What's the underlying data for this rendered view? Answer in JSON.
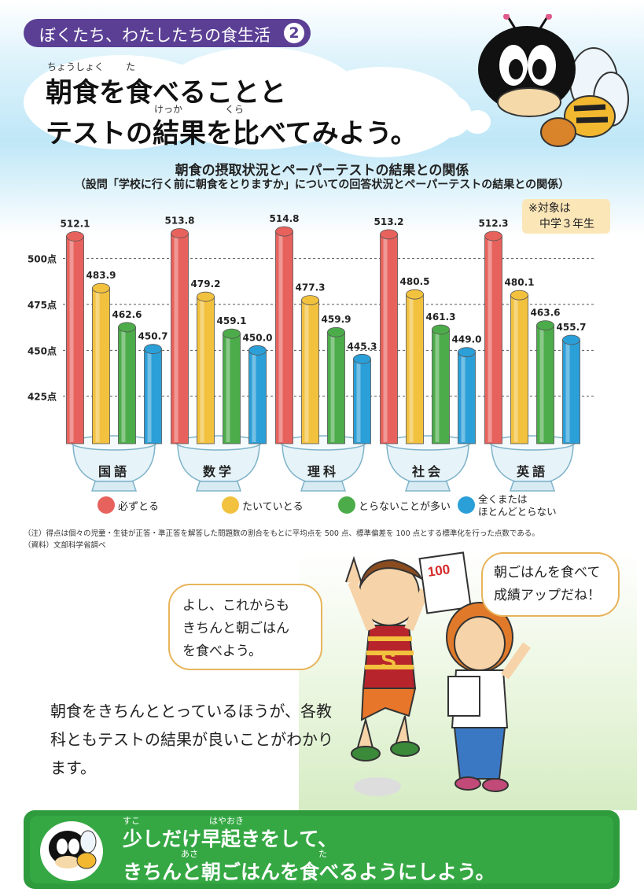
{
  "header": {
    "series_label": "ぼくたち、わたしたちの食生活",
    "series_number": "2",
    "headline_line1": "朝食を食べることと",
    "headline_line2": "テストの結果を比べてみよう。",
    "ruby_chousyoku": "ちょうしょく",
    "ruby_ta": "た",
    "ruby_kekka": "けっか",
    "ruby_kura": "くら"
  },
  "chart_data": {
    "type": "bar",
    "title": "朝食の摂取状況とペーパーテストの結果との関係",
    "subtitle": "（設問「学校に行く前に朝食をとりますか」についての回答状況とペーパーテストの結果との関係）",
    "target_note_line1": "※対象は",
    "target_note_line2": "中学３年生",
    "categories": [
      "国語",
      "数学",
      "理科",
      "社会",
      "英語"
    ],
    "ylim": [
      400,
      520
    ],
    "yticks": [
      425,
      450,
      475,
      500
    ],
    "ytick_labels": [
      "425点",
      "450点",
      "475点",
      "500点"
    ],
    "series": [
      {
        "name": "必ずとる",
        "color": "#e8625d",
        "values": [
          512.1,
          513.8,
          514.8,
          513.2,
          512.3
        ],
        "labels": [
          "512.1",
          "513.8",
          "514.8",
          "513.2",
          "512.3"
        ]
      },
      {
        "name": "たいていとる",
        "color": "#f2c13e",
        "values": [
          483.9,
          479.2,
          477.3,
          480.5,
          480.1
        ],
        "labels": [
          "483.9",
          "479.2",
          "477.3",
          "480.5",
          "480.1"
        ]
      },
      {
        "name": "とらないことが多い",
        "color": "#4cac4a",
        "values": [
          462.6,
          459.1,
          459.9,
          461.3,
          463.6
        ],
        "labels": [
          "462.6",
          "459.1",
          "459.9",
          "461.3",
          "463.6"
        ]
      },
      {
        "name": "全くまたはほとんどとらない",
        "color": "#2b9fd8",
        "values": [
          450.7,
          450.0,
          445.3,
          449.0,
          455.7
        ],
        "labels": [
          "450.7",
          "450.0",
          "445.3",
          "449.0",
          "455.7"
        ]
      }
    ],
    "legend_placement": "bottom",
    "grid": true
  },
  "legend": {
    "item1": "必ずとる",
    "item2": "たいていとる",
    "item3": "とらないことが多い",
    "item4_line1": "全くまたは",
    "item4_line2": "ほとんどとらない"
  },
  "footnotes": {
    "note": "（注）得点は個々の児童・生徒が正答・準正答を解答した問題数の割合をもとに平均点を 500 点、標準偏差を 100 点とする標準化を行った点数である。",
    "source": "（資料）文部科学省調べ"
  },
  "illustration": {
    "bubble_left_line1": "よし、これからも",
    "bubble_left_line2": "きちんと朝ごはん",
    "bubble_left_line3": "を食べよう。",
    "bubble_right_line1": "朝ごはんを食べて",
    "bubble_right_line2": "成績アップだね！",
    "paper_score": "100",
    "shirt_letter": "S"
  },
  "summary": {
    "line1": "朝食をきちんととっているほうが、各教",
    "line2": "科ともテストの結果が良いことがわかり",
    "line3": "ます。"
  },
  "bottom_banner": {
    "line1": "少しだけ早起きをして、",
    "line2": "きちんと朝ごはんを食べるようにしよう。",
    "ruby_suko": "すこ",
    "ruby_hayaoki": "はやおき",
    "ruby_asa": "あさ",
    "ruby_ta": "た"
  },
  "colors": {
    "series_tag": "#5b3f95",
    "banner_green": "#35a844",
    "bubble_border": "#e8b45a"
  }
}
